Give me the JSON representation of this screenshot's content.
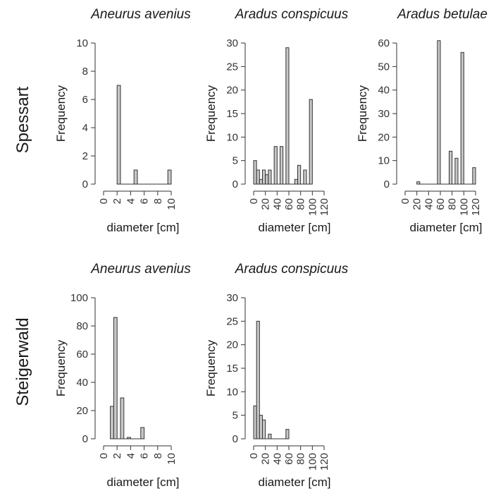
{
  "row_labels": [
    "Spessart",
    "Steigerwald"
  ],
  "chart_data": [
    {
      "type": "bar",
      "title": "Aneurus avenius",
      "xlabel": "diameter [cm]",
      "ylabel": "Frequency",
      "xlim": [
        0,
        10
      ],
      "ylim": [
        0,
        10
      ],
      "xticks": [
        0,
        2,
        4,
        6,
        8,
        10
      ],
      "yticks": [
        0,
        2,
        4,
        6,
        8,
        10
      ],
      "bin_width": 0.5,
      "bins": [
        {
          "x0": 2,
          "x1": 2.5,
          "count": 7
        },
        {
          "x0": 2.5,
          "x1": 4.5,
          "count": 0
        },
        {
          "x0": 4.5,
          "x1": 5,
          "count": 1
        },
        {
          "x0": 5,
          "x1": 9.5,
          "count": 0
        },
        {
          "x0": 9.5,
          "x1": 10,
          "count": 1
        }
      ]
    },
    {
      "type": "bar",
      "title": "Aradus conspicuus",
      "xlabel": "diameter [cm]",
      "ylabel": "Frequency",
      "xlim": [
        0,
        120
      ],
      "ylim": [
        0,
        30
      ],
      "xticks": [
        0,
        20,
        40,
        60,
        80,
        100,
        120
      ],
      "yticks": [
        0,
        5,
        10,
        15,
        20,
        25,
        30
      ],
      "bin_width": 5,
      "bins": [
        {
          "x0": 0,
          "x1": 5,
          "count": 5
        },
        {
          "x0": 5,
          "x1": 10,
          "count": 3
        },
        {
          "x0": 10,
          "x1": 15,
          "count": 1
        },
        {
          "x0": 15,
          "x1": 20,
          "count": 3
        },
        {
          "x0": 20,
          "x1": 25,
          "count": 2
        },
        {
          "x0": 25,
          "x1": 30,
          "count": 3
        },
        {
          "x0": 30,
          "x1": 35,
          "count": 0
        },
        {
          "x0": 35,
          "x1": 40,
          "count": 8
        },
        {
          "x0": 40,
          "x1": 45,
          "count": 0
        },
        {
          "x0": 45,
          "x1": 50,
          "count": 8
        },
        {
          "x0": 50,
          "x1": 55,
          "count": 0
        },
        {
          "x0": 55,
          "x1": 60,
          "count": 29
        },
        {
          "x0": 60,
          "x1": 65,
          "count": 0
        },
        {
          "x0": 65,
          "x1": 70,
          "count": 0
        },
        {
          "x0": 70,
          "x1": 75,
          "count": 1
        },
        {
          "x0": 75,
          "x1": 80,
          "count": 4
        },
        {
          "x0": 80,
          "x1": 85,
          "count": 0
        },
        {
          "x0": 85,
          "x1": 90,
          "count": 3
        },
        {
          "x0": 90,
          "x1": 95,
          "count": 0
        },
        {
          "x0": 95,
          "x1": 100,
          "count": 18
        }
      ]
    },
    {
      "type": "bar",
      "title": "Aradus betulae",
      "xlabel": "diameter [cm]",
      "ylabel": "Frequency",
      "xlim": [
        0,
        120
      ],
      "ylim": [
        0,
        60
      ],
      "xticks": [
        0,
        20,
        40,
        60,
        80,
        100,
        120
      ],
      "yticks": [
        0,
        10,
        20,
        30,
        40,
        50,
        60
      ],
      "bin_width": 5,
      "bins": [
        {
          "x0": 20,
          "x1": 25,
          "count": 1
        },
        {
          "x0": 25,
          "x1": 55,
          "count": 0
        },
        {
          "x0": 55,
          "x1": 60,
          "count": 61
        },
        {
          "x0": 60,
          "x1": 75,
          "count": 0
        },
        {
          "x0": 75,
          "x1": 80,
          "count": 14
        },
        {
          "x0": 80,
          "x1": 85,
          "count": 0
        },
        {
          "x0": 85,
          "x1": 90,
          "count": 11
        },
        {
          "x0": 90,
          "x1": 95,
          "count": 0
        },
        {
          "x0": 95,
          "x1": 100,
          "count": 56
        },
        {
          "x0": 100,
          "x1": 115,
          "count": 0
        },
        {
          "x0": 115,
          "x1": 120,
          "count": 7
        }
      ]
    },
    {
      "type": "bar",
      "title": "Aneurus avenius",
      "xlabel": "diameter [cm]",
      "ylabel": "Frequency",
      "xlim": [
        0,
        10
      ],
      "ylim": [
        0,
        100
      ],
      "xticks": [
        0,
        2,
        4,
        6,
        8,
        10
      ],
      "yticks": [
        0,
        20,
        40,
        60,
        80,
        100
      ],
      "bin_width": 1,
      "bins": [
        {
          "x0": 1,
          "x1": 1.5,
          "count": 23
        },
        {
          "x0": 1.5,
          "x1": 2,
          "count": 86
        },
        {
          "x0": 2,
          "x1": 2.5,
          "count": 0
        },
        {
          "x0": 2.5,
          "x1": 3,
          "count": 29
        },
        {
          "x0": 3,
          "x1": 3.5,
          "count": 0
        },
        {
          "x0": 3.5,
          "x1": 4,
          "count": 1
        },
        {
          "x0": 4,
          "x1": 5.5,
          "count": 0
        },
        {
          "x0": 5.5,
          "x1": 6,
          "count": 8
        }
      ]
    },
    {
      "type": "bar",
      "title": "Aradus conspicuus",
      "xlabel": "diameter [cm]",
      "ylabel": "Frequency",
      "xlim": [
        0,
        120
      ],
      "ylim": [
        0,
        30
      ],
      "xticks": [
        0,
        20,
        40,
        60,
        80,
        100,
        120
      ],
      "yticks": [
        0,
        5,
        10,
        15,
        20,
        25,
        30
      ],
      "bin_width": 5,
      "bins": [
        {
          "x0": 0,
          "x1": 5,
          "count": 7
        },
        {
          "x0": 5,
          "x1": 10,
          "count": 25
        },
        {
          "x0": 10,
          "x1": 15,
          "count": 5
        },
        {
          "x0": 15,
          "x1": 20,
          "count": 4
        },
        {
          "x0": 20,
          "x1": 25,
          "count": 0
        },
        {
          "x0": 25,
          "x1": 30,
          "count": 1
        },
        {
          "x0": 30,
          "x1": 55,
          "count": 0
        },
        {
          "x0": 55,
          "x1": 60,
          "count": 2
        }
      ]
    }
  ]
}
